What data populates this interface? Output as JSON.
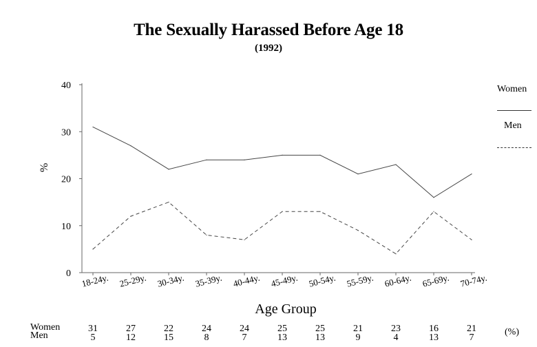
{
  "chart_data": {
    "type": "line",
    "title": "The Sexually Harassed Before Age 18",
    "subtitle": "(1992)",
    "xlabel": "Age Group",
    "ylabel": "%",
    "categories": [
      "18-24y.",
      "25-29y.",
      "30-34y.",
      "35-39y.",
      "40-44y.",
      "45-49y.",
      "50-54y.",
      "55-59y.",
      "60-64y.",
      "65-69y.",
      "70-74y."
    ],
    "yticks": [
      "0",
      "10",
      "20",
      "30",
      "40"
    ],
    "ylim": [
      0,
      40
    ],
    "grid": false,
    "legend_position": "right",
    "series": [
      {
        "name": "Women",
        "values": [
          31,
          27,
          22,
          24,
          24,
          25,
          25,
          21,
          23,
          16,
          21
        ],
        "style": "solid"
      },
      {
        "name": "Men",
        "values": [
          5,
          12,
          15,
          8,
          7,
          13,
          13,
          9,
          4,
          13,
          7
        ],
        "style": "dashed"
      }
    ],
    "table": {
      "row_labels": [
        "Women",
        "Men"
      ],
      "unit": "(%)",
      "women": [
        "31",
        "27",
        "22",
        "24",
        "24",
        "25",
        "25",
        "21",
        "23",
        "16",
        "21"
      ],
      "men": [
        "5",
        "12",
        "15",
        "8",
        "7",
        "13",
        "13",
        "9",
        "4",
        "13",
        "7"
      ]
    }
  }
}
